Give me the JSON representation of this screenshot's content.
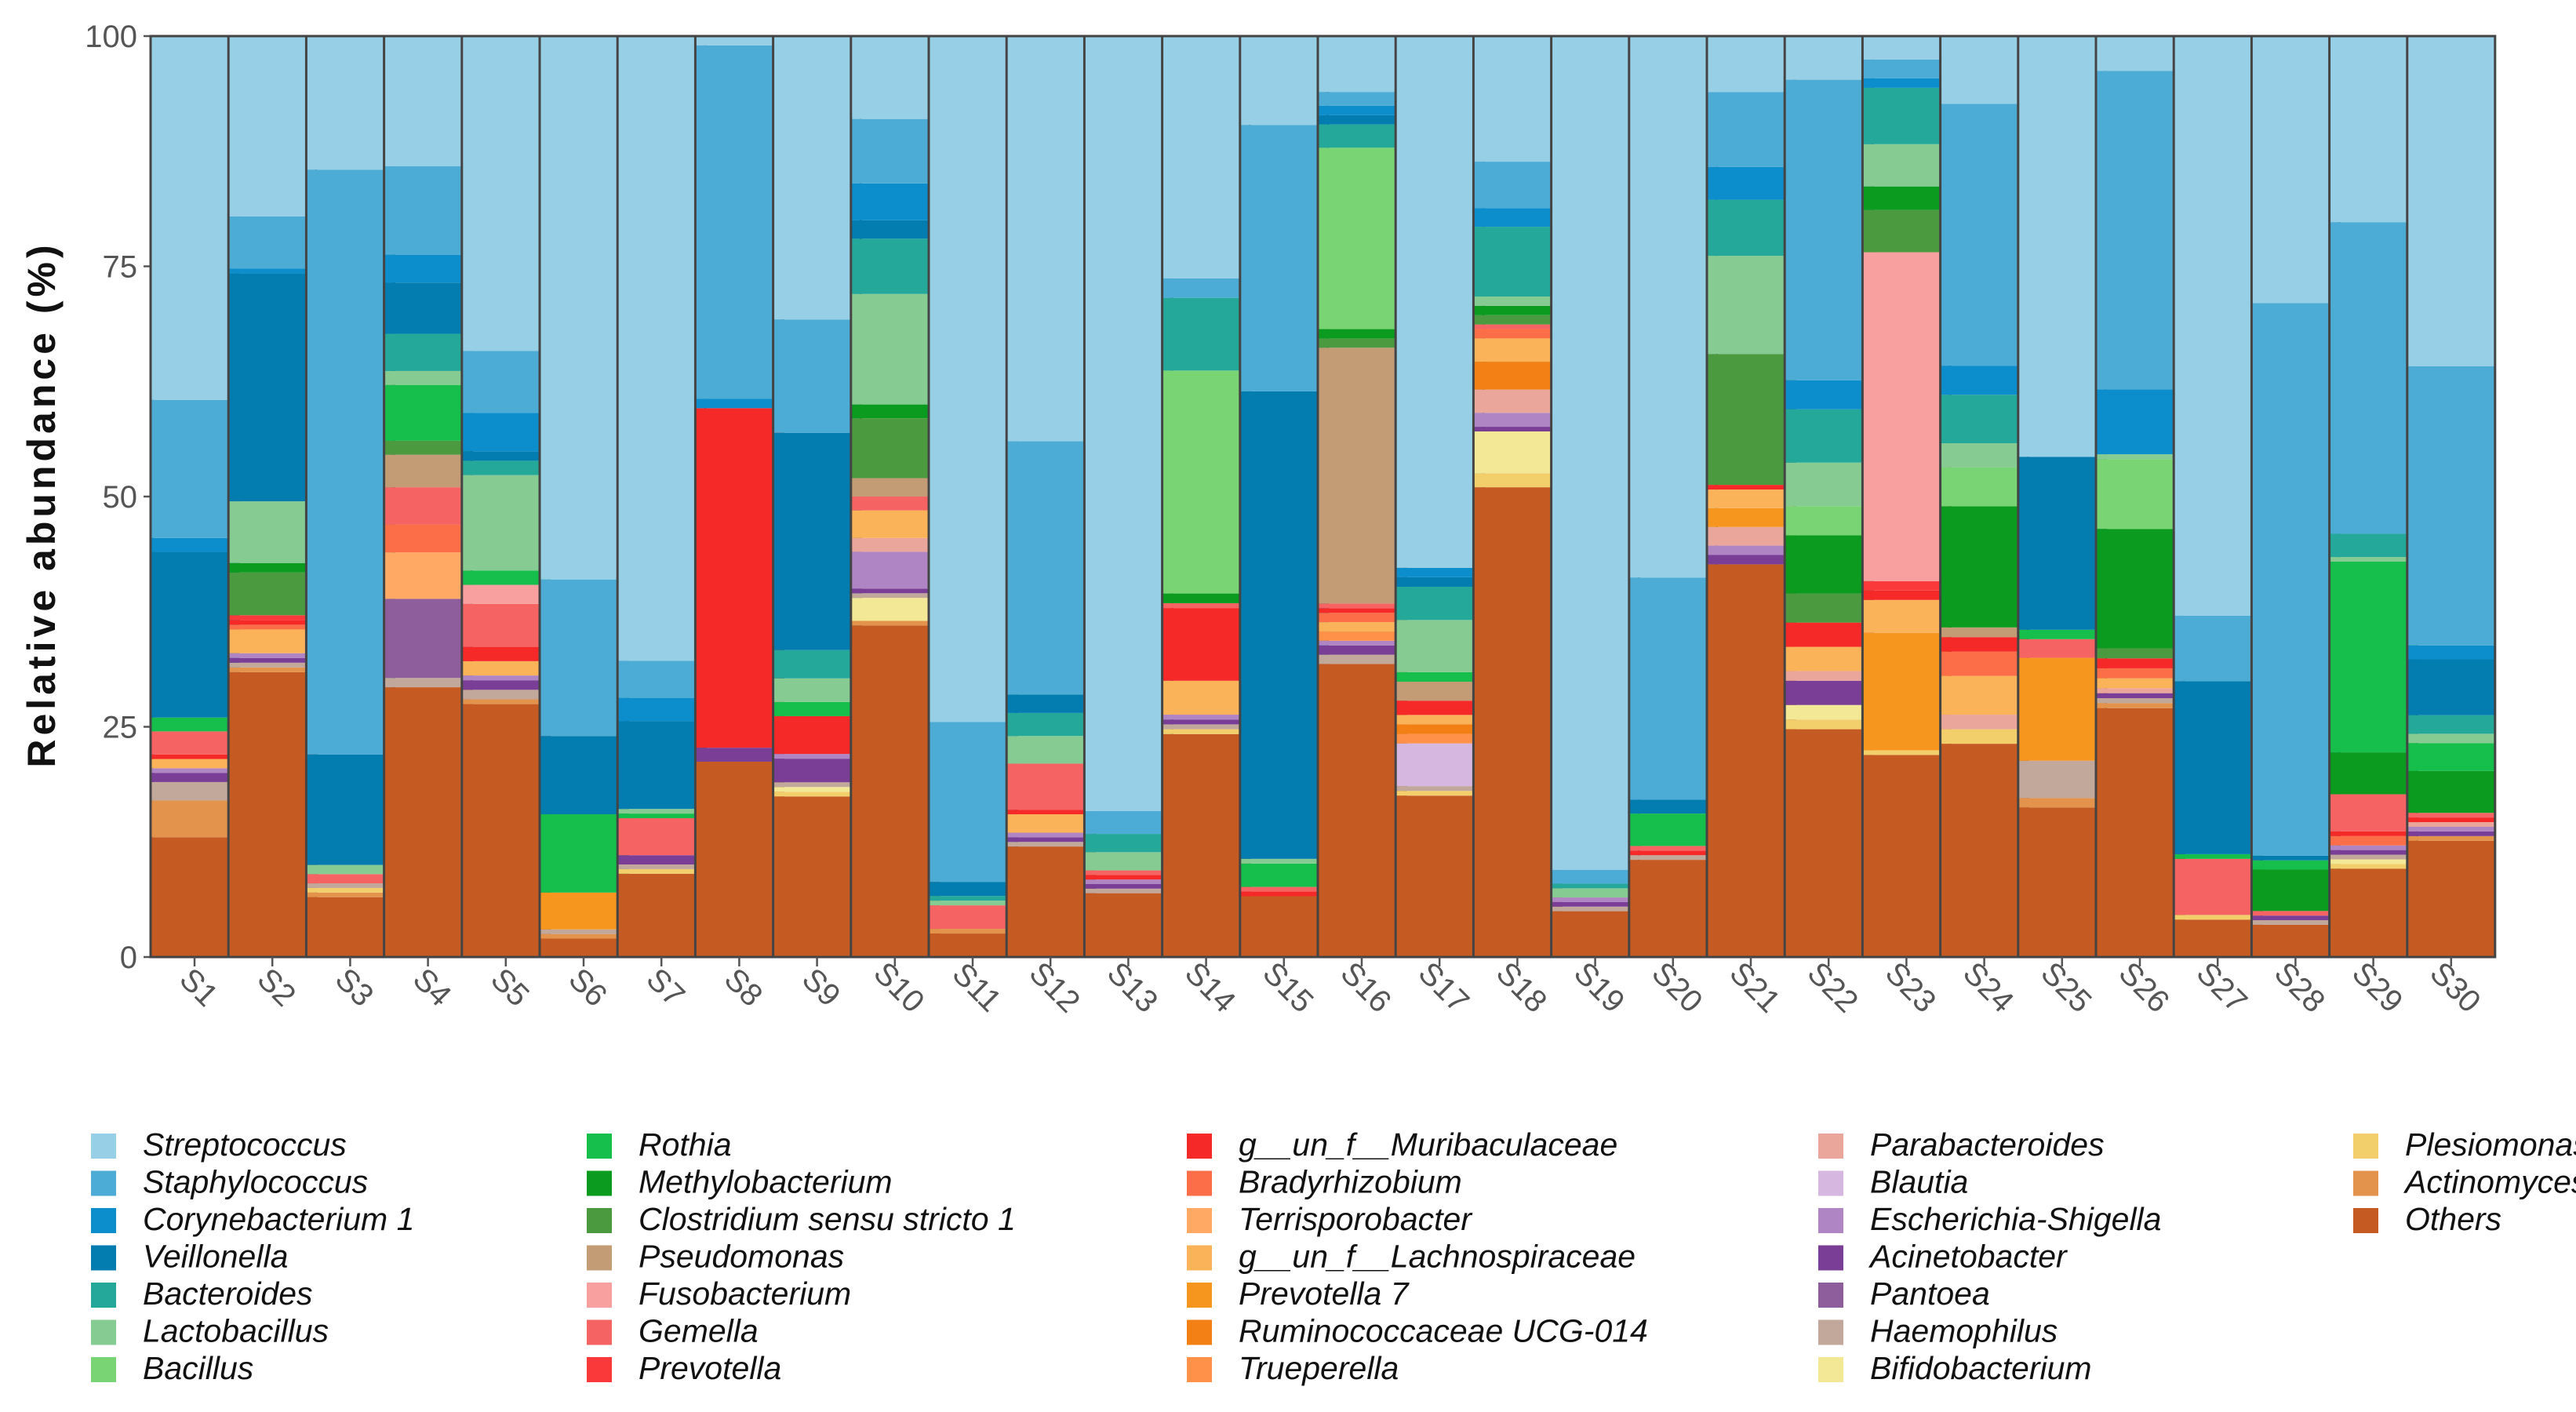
{
  "chart_data": {
    "type": "stacked-bar",
    "ylabel": "Relative abundance (%)",
    "xlabel": "",
    "ylim": [
      0,
      100
    ],
    "yticks": [
      0,
      25,
      50,
      75,
      100
    ],
    "categories": [
      "S1",
      "S2",
      "S3",
      "S4",
      "S5",
      "S6",
      "S7",
      "S8",
      "S9",
      "S10",
      "S11",
      "S12",
      "S13",
      "S14",
      "S15",
      "S16",
      "S17",
      "S18",
      "S19",
      "S20",
      "S21",
      "S22",
      "S23",
      "S24",
      "S25",
      "S26",
      "S27",
      "S28",
      "S29",
      "S30"
    ],
    "legend_position": "bottom",
    "series": [
      {
        "name": "Others",
        "color": "#C55A22",
        "values": [
          13,
          30,
          6.5,
          29,
          26.5,
          2,
          9,
          21,
          17,
          36,
          2.5,
          12,
          7,
          23,
          6.5,
          31.5,
          17,
          50.5,
          5,
          10.5,
          42,
          23.5,
          21.5,
          22,
          16,
          25,
          4,
          3.5,
          9.5,
          12.5
        ]
      },
      {
        "name": "Actinomyces",
        "color": "#E3934B",
        "values": [
          4,
          0.5,
          0.5,
          0,
          0.5,
          0.5,
          0,
          0,
          0,
          0.5,
          0.5,
          0,
          0,
          0,
          0,
          0,
          0,
          0,
          0,
          0,
          0,
          0,
          0,
          0,
          1,
          0.5,
          0,
          0,
          0,
          0.5
        ]
      },
      {
        "name": "Plesiomonas",
        "color": "#F2CF6B",
        "values": [
          0,
          0,
          0.5,
          0,
          0,
          0,
          0.5,
          0,
          0.5,
          0,
          0,
          0,
          0,
          0.5,
          0,
          0,
          0.5,
          1.5,
          0,
          0,
          0,
          1,
          0.5,
          1.5,
          0,
          0,
          0.5,
          0,
          0.5,
          0
        ]
      },
      {
        "name": "Bifidobacterium",
        "color": "#F3E896",
        "values": [
          0,
          0,
          0,
          0,
          0,
          0,
          0,
          0,
          0.5,
          2.5,
          0,
          0,
          0,
          0,
          0,
          0,
          0,
          4.5,
          0,
          0,
          0,
          1.5,
          0,
          0,
          0,
          0,
          0,
          0,
          0.5,
          0
        ]
      },
      {
        "name": "Haemophilus",
        "color": "#C2A79B",
        "values": [
          2,
          0.5,
          0.5,
          1,
          1,
          0.5,
          0.5,
          0,
          0.5,
          0.5,
          0,
          0.5,
          0.5,
          0.5,
          0,
          1,
          0.5,
          0,
          0.5,
          0.5,
          0,
          0,
          0,
          0,
          4,
          0.5,
          0,
          0.5,
          0.5,
          0
        ]
      },
      {
        "name": "Pantoea",
        "color": "#8E5E9C",
        "values": [
          0,
          0,
          0,
          8.5,
          0,
          0,
          0,
          0,
          0,
          0,
          0,
          0,
          0,
          0,
          0,
          0,
          0,
          0,
          0,
          0,
          0,
          0,
          0,
          0,
          0,
          0,
          0,
          0,
          0,
          0
        ]
      },
      {
        "name": "Acinetobacter",
        "color": "#7A3E96",
        "values": [
          1,
          0.5,
          0,
          0,
          1,
          0,
          1,
          1.5,
          2.5,
          0.5,
          0,
          0.5,
          0.5,
          0.5,
          0,
          1,
          0,
          0.5,
          0.5,
          0,
          1,
          2.5,
          0,
          0,
          0,
          0.5,
          0,
          0.5,
          0.5,
          0.5
        ]
      },
      {
        "name": "Escherichia-Shigella",
        "color": "#B085C4",
        "values": [
          0.5,
          0.5,
          0,
          0,
          0.5,
          0,
          0,
          0,
          0.5,
          4,
          0,
          0.5,
          0.5,
          0.5,
          0,
          0.5,
          0,
          1.5,
          0.5,
          0,
          1,
          0,
          0,
          0,
          0,
          0,
          0,
          0,
          0.5,
          0.5
        ]
      },
      {
        "name": "Blautia",
        "color": "#D5B7DF",
        "values": [
          0,
          0,
          0,
          0,
          0,
          0,
          0,
          0,
          0,
          0,
          0,
          0,
          0,
          0,
          0,
          0,
          4.5,
          0,
          0,
          0,
          0,
          0,
          0,
          0,
          0,
          0,
          0,
          0,
          0,
          0
        ]
      },
      {
        "name": "Parabacteroides",
        "color": "#EAA69A",
        "values": [
          0,
          0,
          0,
          0,
          0,
          0,
          0,
          0,
          0,
          1.5,
          0,
          0,
          0,
          0,
          0,
          0,
          0,
          2.5,
          0,
          0,
          2,
          1,
          0,
          1.5,
          0,
          0.5,
          0,
          0,
          0,
          0.5
        ]
      },
      {
        "name": "Trueperella",
        "color": "#FF9248",
        "values": [
          0,
          0,
          0,
          0,
          0,
          0,
          0,
          0,
          0,
          0,
          0,
          0,
          0,
          0,
          0,
          1,
          1,
          0,
          0,
          0,
          0,
          0,
          0,
          0,
          0,
          0,
          0,
          0,
          0,
          0
        ]
      },
      {
        "name": "Ruminococcaceae UCG-014",
        "color": "#F28015",
        "values": [
          0,
          0,
          0,
          0,
          0,
          0,
          0,
          0,
          0,
          0,
          0,
          0,
          0,
          0,
          0,
          0,
          1,
          3,
          0,
          0,
          0,
          0,
          0,
          0,
          0,
          0,
          0,
          0,
          0,
          0
        ]
      },
      {
        "name": "Prevotella 7",
        "color": "#F7961F",
        "values": [
          0,
          0,
          0,
          0,
          0,
          4,
          0,
          0,
          0,
          0,
          0,
          0,
          0,
          0,
          0,
          0,
          0,
          0,
          0,
          0,
          2,
          0,
          12.5,
          0,
          11,
          0,
          0,
          0,
          0,
          0
        ]
      },
      {
        "name": "g__un_f__Lachnospiraceae",
        "color": "#FBB35A",
        "values": [
          1,
          2.5,
          0,
          0,
          1.5,
          0,
          0,
          0,
          0,
          3,
          0,
          2,
          0,
          3.5,
          0,
          1,
          1,
          2.5,
          0,
          0,
          2,
          2.5,
          3.5,
          4,
          0,
          1,
          0,
          0,
          0,
          0
        ]
      },
      {
        "name": "Terrisporobacter",
        "color": "#FFA964",
        "values": [
          0,
          0,
          0,
          5,
          0,
          0,
          0,
          0,
          0,
          0,
          0,
          0,
          0,
          0,
          0,
          0,
          0,
          0,
          0,
          0,
          0,
          0,
          0,
          0,
          0,
          0,
          0,
          0,
          0,
          0
        ]
      },
      {
        "name": "Bradyrhizobium",
        "color": "#FC6E47",
        "values": [
          0,
          0.5,
          0,
          3,
          0,
          0,
          0,
          0,
          0,
          0,
          0,
          0,
          0,
          0,
          0,
          1,
          0,
          1,
          0,
          0,
          0,
          0,
          0,
          2.5,
          0,
          1,
          0,
          0,
          1,
          0
        ]
      },
      {
        "name": "g__un_f__Muribaculaceae",
        "color": "#F62929",
        "values": [
          0.5,
          0.5,
          0,
          0,
          1.5,
          0,
          0,
          36.5,
          4,
          0,
          0,
          0.5,
          0.5,
          7.5,
          0.5,
          0.5,
          1.5,
          0,
          0,
          0.5,
          0.5,
          2.5,
          1,
          1.5,
          0,
          1,
          0,
          0,
          0.5,
          0.5
        ]
      },
      {
        "name": "Gemella",
        "color": "#F56363",
        "values": [
          2.5,
          0,
          1,
          4,
          4.5,
          0,
          4,
          0,
          0,
          1.5,
          2.5,
          5,
          0.5,
          0.5,
          0.5,
          0.5,
          0,
          0.5,
          0,
          0.5,
          0,
          0,
          0,
          0,
          2,
          0,
          6,
          0.5,
          4,
          0.5
        ]
      },
      {
        "name": "Prevotella",
        "color": "#FA3A3A",
        "values": [
          0,
          0.5,
          0,
          0,
          0,
          0,
          0,
          0,
          0,
          0,
          0,
          0,
          0,
          0,
          0,
          0,
          0,
          0,
          0,
          0,
          0,
          0,
          1,
          0,
          0,
          0,
          0,
          0,
          0,
          0
        ]
      },
      {
        "name": "Fusobacterium",
        "color": "#F8A0A0",
        "values": [
          0,
          0,
          0,
          0,
          2,
          0,
          0,
          0,
          0,
          0,
          0,
          0,
          0,
          0,
          0,
          0,
          0,
          0,
          0,
          0,
          0,
          0,
          35,
          0,
          0,
          0,
          0,
          0,
          0,
          0
        ]
      },
      {
        "name": "Pseudomonas",
        "color": "#C39C76",
        "values": [
          0,
          0,
          0,
          3.5,
          0,
          0,
          0,
          0,
          0,
          2,
          0,
          0,
          0,
          0,
          0,
          27.5,
          2,
          0,
          0,
          0,
          0,
          0,
          0,
          1,
          0,
          0,
          0,
          0,
          0,
          0
        ]
      },
      {
        "name": "Clostridium sensu stricto 1",
        "color": "#4C9A3F",
        "values": [
          0,
          4.5,
          0,
          1.5,
          0,
          0,
          0,
          0,
          0,
          6.5,
          0,
          0,
          0,
          0,
          0,
          1,
          0,
          1,
          0,
          0,
          14,
          3,
          4.5,
          0,
          0,
          1,
          0,
          0,
          0,
          0
        ]
      },
      {
        "name": "Methylobacterium",
        "color": "#0B9B1F",
        "values": [
          0,
          1,
          0,
          0,
          0,
          0,
          0,
          0,
          0,
          1.5,
          0,
          0,
          0,
          1,
          0,
          1,
          0,
          1,
          0,
          0,
          0,
          6,
          2.5,
          12.5,
          0,
          12,
          0,
          4.5,
          4.5,
          4.5
        ]
      },
      {
        "name": "Rothia",
        "color": "#16BE4B",
        "values": [
          1.5,
          0,
          0,
          6,
          1.5,
          8.5,
          0.5,
          0,
          1.5,
          0,
          0,
          0,
          0,
          0,
          2.5,
          0,
          1,
          0,
          0,
          3.5,
          0,
          0,
          0,
          0,
          1,
          0,
          0.5,
          1,
          20.5,
          3
        ]
      },
      {
        "name": "Bacillus",
        "color": "#79D474",
        "values": [
          0,
          0,
          0,
          0,
          0,
          0,
          0,
          0,
          0,
          0,
          0,
          0,
          0,
          23,
          0,
          19.5,
          0,
          0,
          0,
          0,
          0,
          3,
          0,
          4,
          0,
          7,
          0,
          0,
          0,
          0
        ]
      },
      {
        "name": "Lactobacillus",
        "color": "#86CC92",
        "values": [
          0,
          6.5,
          1,
          1.5,
          10,
          0,
          0.5,
          0,
          2.5,
          12,
          0.5,
          3,
          2,
          0,
          0.5,
          0,
          5.5,
          1,
          1,
          0,
          10.5,
          4.5,
          4.5,
          2.5,
          0,
          0.5,
          0,
          0,
          0.5,
          1
        ]
      },
      {
        "name": "Bacteroides",
        "color": "#23A89A",
        "values": [
          0,
          0,
          0,
          4,
          1.5,
          0,
          0,
          0,
          3,
          6,
          0.5,
          2.5,
          2,
          7.5,
          0,
          2.5,
          3.5,
          7.5,
          0.5,
          0,
          6,
          5.5,
          6,
          5,
          0,
          0,
          0,
          0,
          2.5,
          2
        ]
      },
      {
        "name": "Veillonella",
        "color": "#037CB0",
        "values": [
          18,
          24,
          12,
          5.5,
          1,
          8.5,
          9.5,
          0,
          23,
          2,
          1.5,
          2,
          0,
          0,
          50,
          1,
          1,
          0,
          0,
          1.5,
          0,
          0,
          0,
          0,
          18.5,
          0,
          18.5,
          0.5,
          0,
          6
        ]
      },
      {
        "name": "Corynebacterium 1",
        "color": "#0B8ECB",
        "values": [
          1.5,
          0.5,
          0,
          3,
          4,
          0,
          2.5,
          1,
          0,
          4,
          0,
          0,
          0,
          0,
          0,
          1,
          1,
          2,
          0,
          0,
          3.5,
          3,
          1,
          3,
          0,
          6.5,
          0,
          0,
          0,
          1.5
        ]
      },
      {
        "name": "Staphylococcus",
        "color": "#4CACD5",
        "values": [
          15,
          5.5,
          63.5,
          9.5,
          6.5,
          17,
          4,
          38,
          12,
          7,
          17,
          27.5,
          2.5,
          2,
          28.5,
          1.5,
          0,
          5,
          1.5,
          24,
          8,
          31,
          2,
          27,
          0,
          32,
          7,
          60,
          33.5,
          30
        ]
      },
      {
        "name": "Streptococcus",
        "color": "#97D0E6",
        "values": [
          39.5,
          19,
          14.5,
          14,
          33,
          59,
          67.5,
          1,
          30,
          9,
          73,
          44,
          85,
          25,
          9.5,
          6,
          56,
          13.5,
          91,
          58.5,
          6,
          4.5,
          2.5,
          7,
          45,
          3.5,
          62,
          29,
          20,
          35.5
        ]
      }
    ],
    "legend_columns": [
      [
        "Streptococcus",
        "Staphylococcus",
        "Corynebacterium 1",
        "Veillonella",
        "Bacteroides",
        "Lactobacillus",
        "Bacillus"
      ],
      [
        "Rothia",
        "Methylobacterium",
        "Clostridium sensu stricto 1",
        "Pseudomonas",
        "Fusobacterium",
        "Gemella",
        "Prevotella"
      ],
      [
        "g__un_f__Muribaculaceae",
        "Bradyrhizobium",
        "Terrisporobacter",
        "g__un_f__Lachnospiraceae",
        "Prevotella 7",
        "Ruminococcaceae UCG-014",
        "Trueperella"
      ],
      [
        "Parabacteroides",
        "Blautia",
        "Escherichia-Shigella",
        "Acinetobacter",
        "Pantoea",
        "Haemophilus",
        "Bifidobacterium"
      ],
      [
        "Plesiomonas",
        "Actinomyces",
        "Others"
      ]
    ]
  }
}
